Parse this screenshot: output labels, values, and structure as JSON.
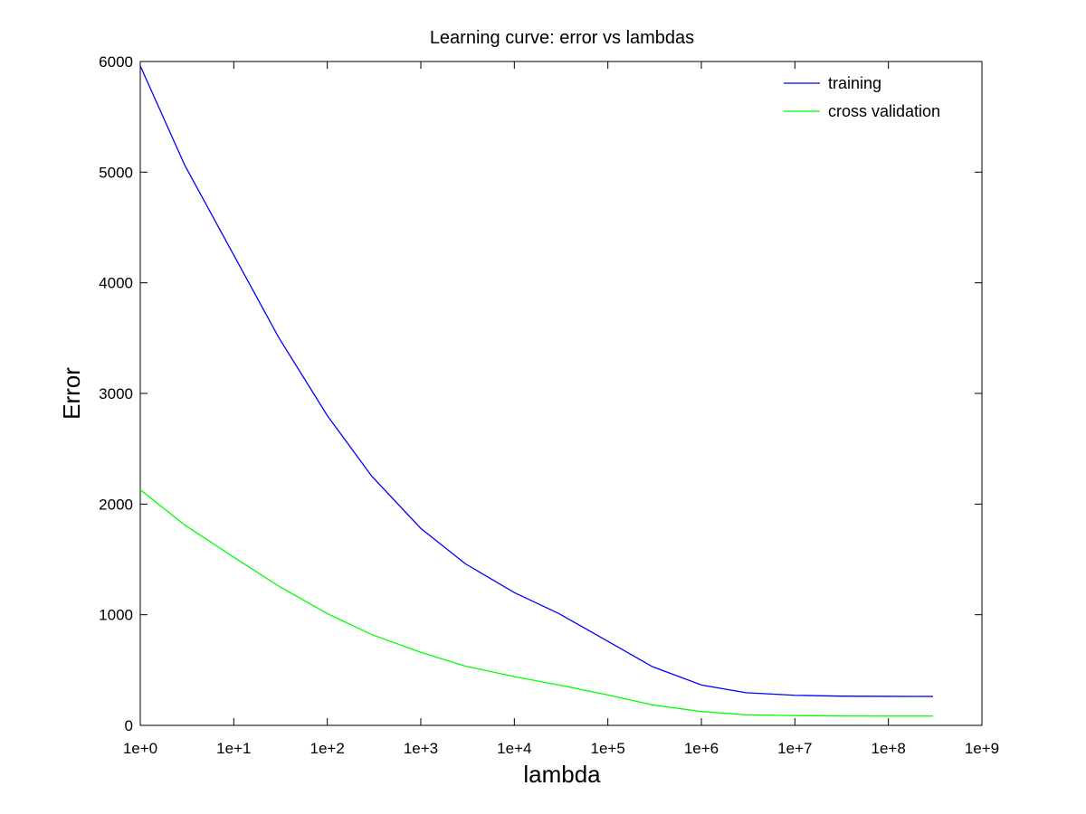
{
  "chart_data": {
    "type": "line",
    "title": "Learning curve: error vs lambdas",
    "xlabel": "lambda",
    "ylabel": "Error",
    "x_scale": "log",
    "xlim": [
      1,
      1000000000
    ],
    "ylim": [
      0,
      6000
    ],
    "x_ticks": [
      {
        "value": 1,
        "label": "1e+0"
      },
      {
        "value": 10,
        "label": "1e+1"
      },
      {
        "value": 100,
        "label": "1e+2"
      },
      {
        "value": 1000,
        "label": "1e+3"
      },
      {
        "value": 10000,
        "label": "1e+4"
      },
      {
        "value": 100000,
        "label": "1e+5"
      },
      {
        "value": 1000000,
        "label": "1e+6"
      },
      {
        "value": 10000000,
        "label": "1e+7"
      },
      {
        "value": 100000000,
        "label": "1e+8"
      },
      {
        "value": 1000000000,
        "label": "1e+9"
      }
    ],
    "y_ticks": [
      {
        "value": 0,
        "label": "0"
      },
      {
        "value": 1000,
        "label": "1000"
      },
      {
        "value": 2000,
        "label": "2000"
      },
      {
        "value": 3000,
        "label": "3000"
      },
      {
        "value": 4000,
        "label": "4000"
      },
      {
        "value": 5000,
        "label": "5000"
      },
      {
        "value": 6000,
        "label": "6000"
      }
    ],
    "grid": false,
    "legend_position": "top-right",
    "x": [
      1,
      3,
      10,
      30,
      100,
      300,
      1000,
      3000,
      10000,
      30000,
      100000,
      300000,
      1000000,
      3000000,
      10000000,
      30000000,
      100000000,
      300000000
    ],
    "series": [
      {
        "name": "training",
        "color": "#0000ff",
        "values": [
          5960,
          5060,
          4250,
          3510,
          2800,
          2250,
          1780,
          1460,
          1200,
          1010,
          760,
          530,
          365,
          295,
          272,
          264,
          262,
          261
        ]
      },
      {
        "name": "cross validation",
        "color": "#00ff00",
        "values": [
          2130,
          1810,
          1520,
          1260,
          1010,
          820,
          660,
          535,
          440,
          365,
          275,
          185,
          125,
          95,
          88,
          85,
          84,
          84
        ]
      }
    ]
  }
}
